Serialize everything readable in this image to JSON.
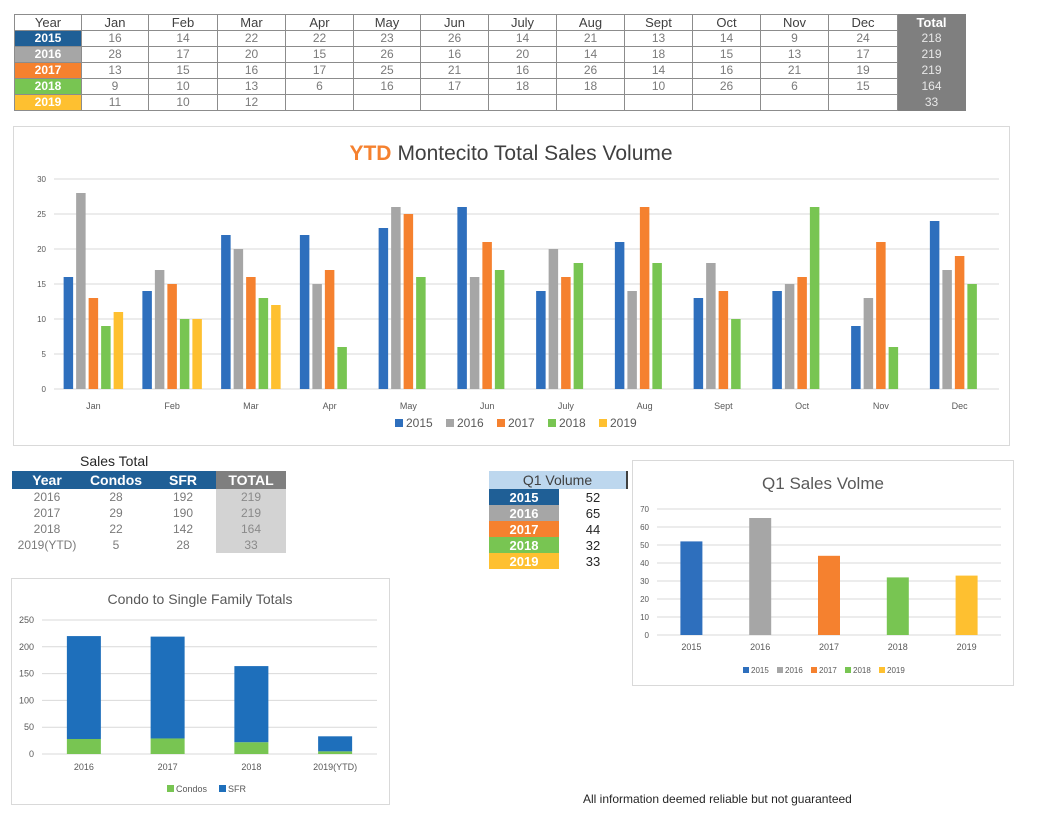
{
  "colors": {
    "y2015": "#2e6fbd",
    "y2016": "#a6a6a6",
    "y2017": "#f5812f",
    "y2018": "#78c552",
    "y2019": "#fec030",
    "condos": "#78c552",
    "sfr": "#1e6fbb",
    "header_blue": "#1f5f96"
  },
  "monthly_table": {
    "headers": [
      "Year",
      "Jan",
      "Feb",
      "Mar",
      "Apr",
      "May",
      "Jun",
      "July",
      "Aug",
      "Sept",
      "Oct",
      "Nov",
      "Dec",
      "Total"
    ],
    "rows": [
      {
        "year": "2015",
        "values": [
          "16",
          "14",
          "22",
          "22",
          "23",
          "26",
          "14",
          "21",
          "13",
          "14",
          "9",
          "24"
        ],
        "total": "218"
      },
      {
        "year": "2016",
        "values": [
          "28",
          "17",
          "20",
          "15",
          "26",
          "16",
          "20",
          "14",
          "18",
          "15",
          "13",
          "17"
        ],
        "total": "219"
      },
      {
        "year": "2017",
        "values": [
          "13",
          "15",
          "16",
          "17",
          "25",
          "21",
          "16",
          "26",
          "14",
          "16",
          "21",
          "19"
        ],
        "total": "219"
      },
      {
        "year": "2018",
        "values": [
          "9",
          "10",
          "13",
          "6",
          "16",
          "17",
          "18",
          "18",
          "10",
          "26",
          "6",
          "15"
        ],
        "total": "164"
      },
      {
        "year": "2019",
        "values": [
          "11",
          "10",
          "12",
          "",
          "",
          "",
          "",
          "",
          "",
          "",
          "",
          ""
        ],
        "total": "33"
      }
    ]
  },
  "sales_total": {
    "title": "Sales Total",
    "headers": [
      "Year",
      "Condos",
      "SFR",
      "TOTAL"
    ],
    "rows": [
      [
        "2016",
        "28",
        "192",
        "219"
      ],
      [
        "2017",
        "29",
        "190",
        "219"
      ],
      [
        "2018",
        "22",
        "142",
        "164"
      ],
      [
        "2019(YTD)",
        "5",
        "28",
        "33"
      ]
    ]
  },
  "q1_volume": {
    "header": "Q1 Volume",
    "rows": [
      {
        "year": "2015",
        "value": "52"
      },
      {
        "year": "2016",
        "value": "65"
      },
      {
        "year": "2017",
        "value": "44"
      },
      {
        "year": "2018",
        "value": "32"
      },
      {
        "year": "2019",
        "value": "33"
      }
    ]
  },
  "disclaimer": "All information deemed reliable but not guaranteed",
  "chart_data": [
    {
      "type": "bar",
      "title_highlight": "YTD",
      "title": "Montecito Total Sales Volume",
      "categories": [
        "Jan",
        "Feb",
        "Mar",
        "Apr",
        "May",
        "Jun",
        "July",
        "Aug",
        "Sept",
        "Oct",
        "Nov",
        "Dec"
      ],
      "series": [
        {
          "name": "2015",
          "values": [
            16,
            14,
            22,
            22,
            23,
            26,
            14,
            21,
            13,
            14,
            9,
            24
          ]
        },
        {
          "name": "2016",
          "values": [
            28,
            17,
            20,
            15,
            26,
            16,
            20,
            14,
            18,
            15,
            13,
            17
          ]
        },
        {
          "name": "2017",
          "values": [
            13,
            15,
            16,
            17,
            25,
            21,
            16,
            26,
            14,
            16,
            21,
            19
          ]
        },
        {
          "name": "2018",
          "values": [
            9,
            10,
            13,
            6,
            16,
            17,
            18,
            18,
            10,
            26,
            6,
            15
          ]
        },
        {
          "name": "2019",
          "values": [
            11,
            10,
            12,
            null,
            null,
            null,
            null,
            null,
            null,
            null,
            null,
            null
          ]
        }
      ],
      "ylim": [
        0,
        30
      ],
      "yticks": [
        "0",
        "5",
        "10",
        "15",
        "20",
        "25",
        "30"
      ],
      "legend": "bottom",
      "grid": true
    },
    {
      "type": "bar",
      "stacked": true,
      "title": "Condo to Single Family Totals",
      "categories": [
        "2016",
        "2017",
        "2018",
        "2019(YTD)"
      ],
      "series": [
        {
          "name": "Condos",
          "values": [
            28,
            29,
            22,
            5
          ]
        },
        {
          "name": "SFR",
          "values": [
            192,
            190,
            142,
            28
          ]
        }
      ],
      "ylim": [
        0,
        250
      ],
      "yticks": [
        "0",
        "50",
        "100",
        "150",
        "200",
        "250"
      ],
      "legend": "bottom",
      "grid": true
    },
    {
      "type": "bar",
      "title": "Q1 Sales Volme",
      "categories": [
        "2015",
        "2016",
        "2017",
        "2018",
        "2019"
      ],
      "values": [
        52,
        65,
        44,
        32,
        33
      ],
      "ylim": [
        0,
        70
      ],
      "yticks": [
        "0",
        "10",
        "20",
        "30",
        "40",
        "50",
        "60",
        "70"
      ],
      "legend_items": [
        "2015",
        "2016",
        "2017",
        "2018",
        "2019"
      ],
      "legend": "bottom",
      "grid": true
    }
  ]
}
